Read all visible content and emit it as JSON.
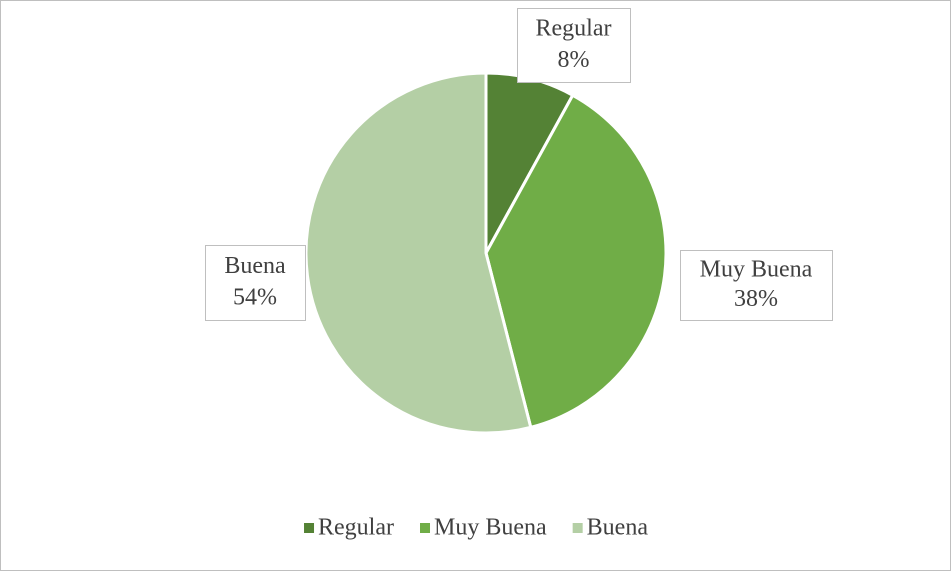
{
  "chart_data": {
    "type": "pie",
    "categories": [
      "Regular",
      "Muy Buena",
      "Buena"
    ],
    "values": [
      8,
      38,
      54
    ],
    "value_labels": [
      "8%",
      "38%",
      "54%"
    ],
    "colors": [
      "#548235",
      "#70ad47",
      "#b4cfa5"
    ],
    "legend": "bottom"
  }
}
